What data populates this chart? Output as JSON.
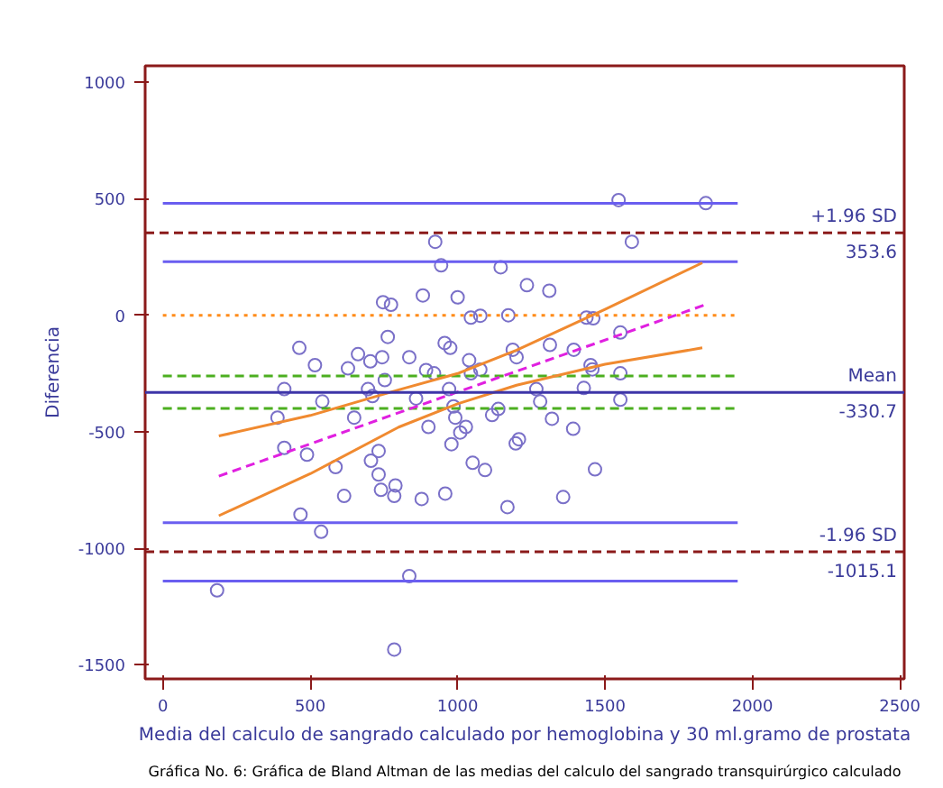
{
  "chart_data": {
    "type": "scatter",
    "xlabel": "Media del calculo de sangrado calculado por hemoglobina y 30 ml.gramo de prostata",
    "ylabel": "Diferencia",
    "xlim": [
      -60,
      2515
    ],
    "ylim": [
      -1560,
      1070
    ],
    "xticks": [
      0,
      500,
      1000,
      1500,
      2000,
      2500
    ],
    "yticks": [
      -1500,
      -1000,
      -500,
      0,
      500,
      1000
    ],
    "grid": false,
    "series": [
      {
        "marker": "circle",
        "color": "#7a70c8",
        "x": [
          1546,
          1842,
          924,
          1591,
          944,
          1146,
          1235,
          1311,
          882,
          1000,
          747,
          774,
          1045,
          1077,
          1172,
          1437,
          1460,
          1552,
          763,
          463,
          956,
          975,
          1313,
          1187,
          1200,
          1394,
          662,
          704,
          744,
          516,
          628,
          836,
          1039,
          1077,
          893,
          920,
          1451,
          1552,
          753,
          1045,
          412,
          696,
          971,
          1267,
          1428,
          541,
          711,
          859,
          986,
          992,
          1138,
          1117,
          1280,
          389,
          649,
          901,
          1028,
          1009,
          1320,
          1392,
          412,
          489,
          979,
          1197,
          1208,
          732,
          586,
          706,
          732,
          1051,
          1093,
          1466,
          740,
          789,
          785,
          615,
          878,
          958,
          1358,
          1169,
          467,
          537,
          836,
          184,
          785,
          1552,
          1457
        ],
        "values": [
          494,
          481,
          315,
          315,
          214,
          206,
          129,
          105,
          85,
          77,
          56,
          45,
          -10,
          -2,
          0,
          -10,
          -13,
          -74,
          -93,
          -140,
          -119,
          -140,
          -127,
          -148,
          -180,
          -148,
          -167,
          -198,
          -180,
          -214,
          -228,
          -180,
          -193,
          -233,
          -235,
          -249,
          -214,
          -249,
          -278,
          -249,
          -317,
          -317,
          -317,
          -317,
          -312,
          -370,
          -347,
          -357,
          -391,
          -439,
          -402,
          -428,
          -370,
          -439,
          -439,
          -479,
          -479,
          -503,
          -444,
          -487,
          -569,
          -598,
          -553,
          -550,
          -532,
          -582,
          -651,
          -624,
          -683,
          -633,
          -664,
          -661,
          -749,
          -730,
          -775,
          -775,
          -788,
          -765,
          -780,
          -823,
          -855,
          -929,
          -1119,
          -1180,
          -1434,
          -362,
          -232
        ]
      },
      {
        "type": "line",
        "color": "#6a5ef0",
        "line_style": "solid",
        "x": [
          0,
          1950
        ],
        "values": [
          480,
          480
        ]
      },
      {
        "type": "line",
        "color": "#6a5ef0",
        "line_style": "solid",
        "x": [
          0,
          1950
        ],
        "values": [
          230,
          230
        ]
      },
      {
        "type": "line",
        "color": "#ff8c1a",
        "line_style": "dotted",
        "x": [
          0,
          1950
        ],
        "values": [
          0,
          0
        ]
      },
      {
        "type": "line",
        "color": "#4caf20",
        "line_style": "dashed",
        "x": [
          0,
          1950
        ],
        "values": [
          -260,
          -260
        ]
      },
      {
        "type": "line",
        "color": "#4caf20",
        "line_style": "dashed",
        "x": [
          0,
          1950
        ],
        "values": [
          -400,
          -400
        ]
      },
      {
        "type": "line",
        "color": "#6a5ef0",
        "line_style": "solid",
        "x": [
          0,
          1950
        ],
        "values": [
          -890,
          -890
        ]
      },
      {
        "type": "line",
        "color": "#6a5ef0",
        "line_style": "solid",
        "x": [
          0,
          1950
        ],
        "values": [
          -1140,
          -1140
        ]
      },
      {
        "type": "line",
        "color": "#e020e0",
        "line_style": "dashed",
        "x": [
          190,
          1840
        ],
        "values": [
          -690,
          45
        ]
      },
      {
        "type": "line",
        "color": "#f08a30",
        "line_style": "solid",
        "x": [
          190,
          500,
          800,
          1000,
          1200,
          1500,
          1830
        ],
        "values": [
          -518,
          -430,
          -320,
          -250,
          -150,
          25,
          225
        ]
      },
      {
        "type": "line",
        "color": "#f08a30",
        "line_style": "solid",
        "x": [
          190,
          500,
          800,
          1000,
          1200,
          1500,
          1830
        ],
        "values": [
          -860,
          -680,
          -480,
          -380,
          -300,
          -210,
          -140
        ]
      }
    ],
    "ref_lines": [
      {
        "axis": "y",
        "value": 353.6,
        "label": "+1.96 SD",
        "color": "#8b1a1a",
        "line_style": "dashed"
      },
      {
        "axis": "y",
        "value": -330.7,
        "label": "Mean",
        "color": "#3d35a8",
        "line_style": "solid"
      },
      {
        "axis": "y",
        "value": -1015.1,
        "label": "-1.96 SD",
        "color": "#8b1a1a",
        "line_style": "dashed"
      }
    ],
    "annotations": [
      {
        "text": "353.6",
        "y": 353.6
      },
      {
        "text": "-330.7",
        "y": -330.7
      },
      {
        "text": "-1015.1",
        "y": -1015.1
      },
      "Gráfica No. 6: Gráfica de Bland Altman de las medias del calculo del sangrado transquirúrgico calculado"
    ]
  }
}
